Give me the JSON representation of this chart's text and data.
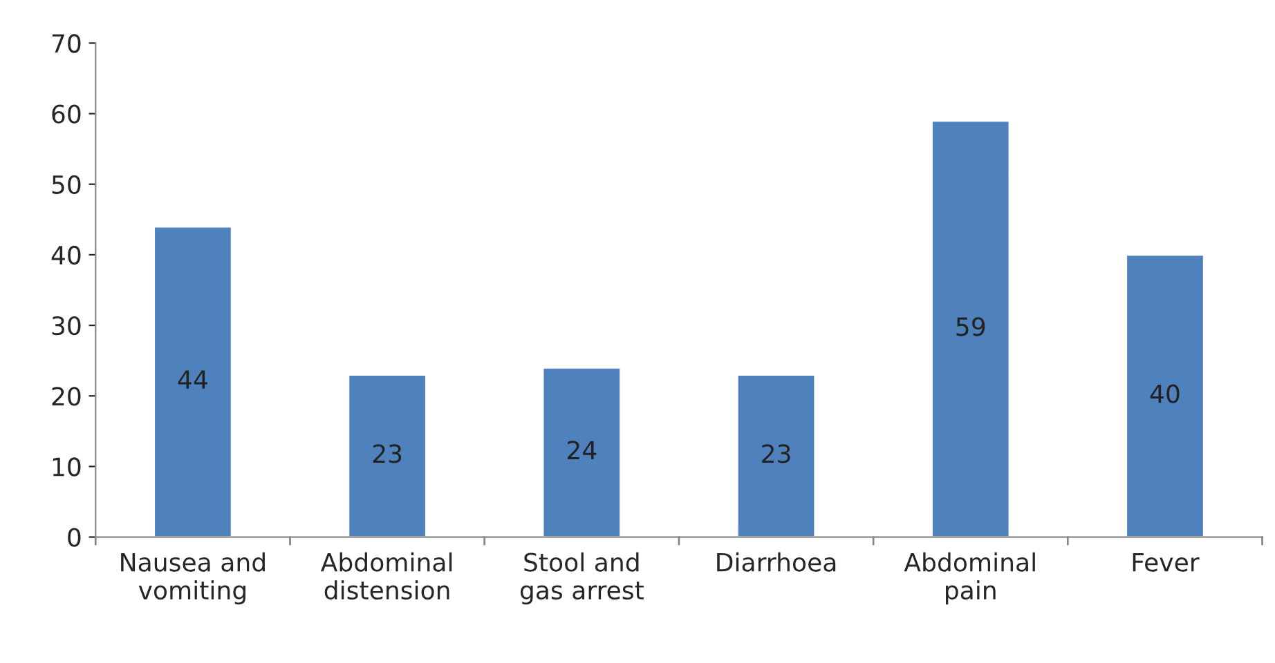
{
  "chart_data": {
    "type": "bar",
    "categories": [
      "Nausea and\nvomiting",
      "Abdominal\ndistension",
      "Stool and\ngas arrest",
      "Diarrhoea",
      "Abdominal\npain",
      "Fever"
    ],
    "values": [
      44,
      23,
      24,
      23,
      59,
      40
    ],
    "color": "#4f81bd",
    "ylim": [
      0,
      70
    ],
    "yticks": [
      0,
      10,
      20,
      30,
      40,
      50,
      60,
      70
    ],
    "data_labels": true,
    "grid": false,
    "legend": false
  }
}
